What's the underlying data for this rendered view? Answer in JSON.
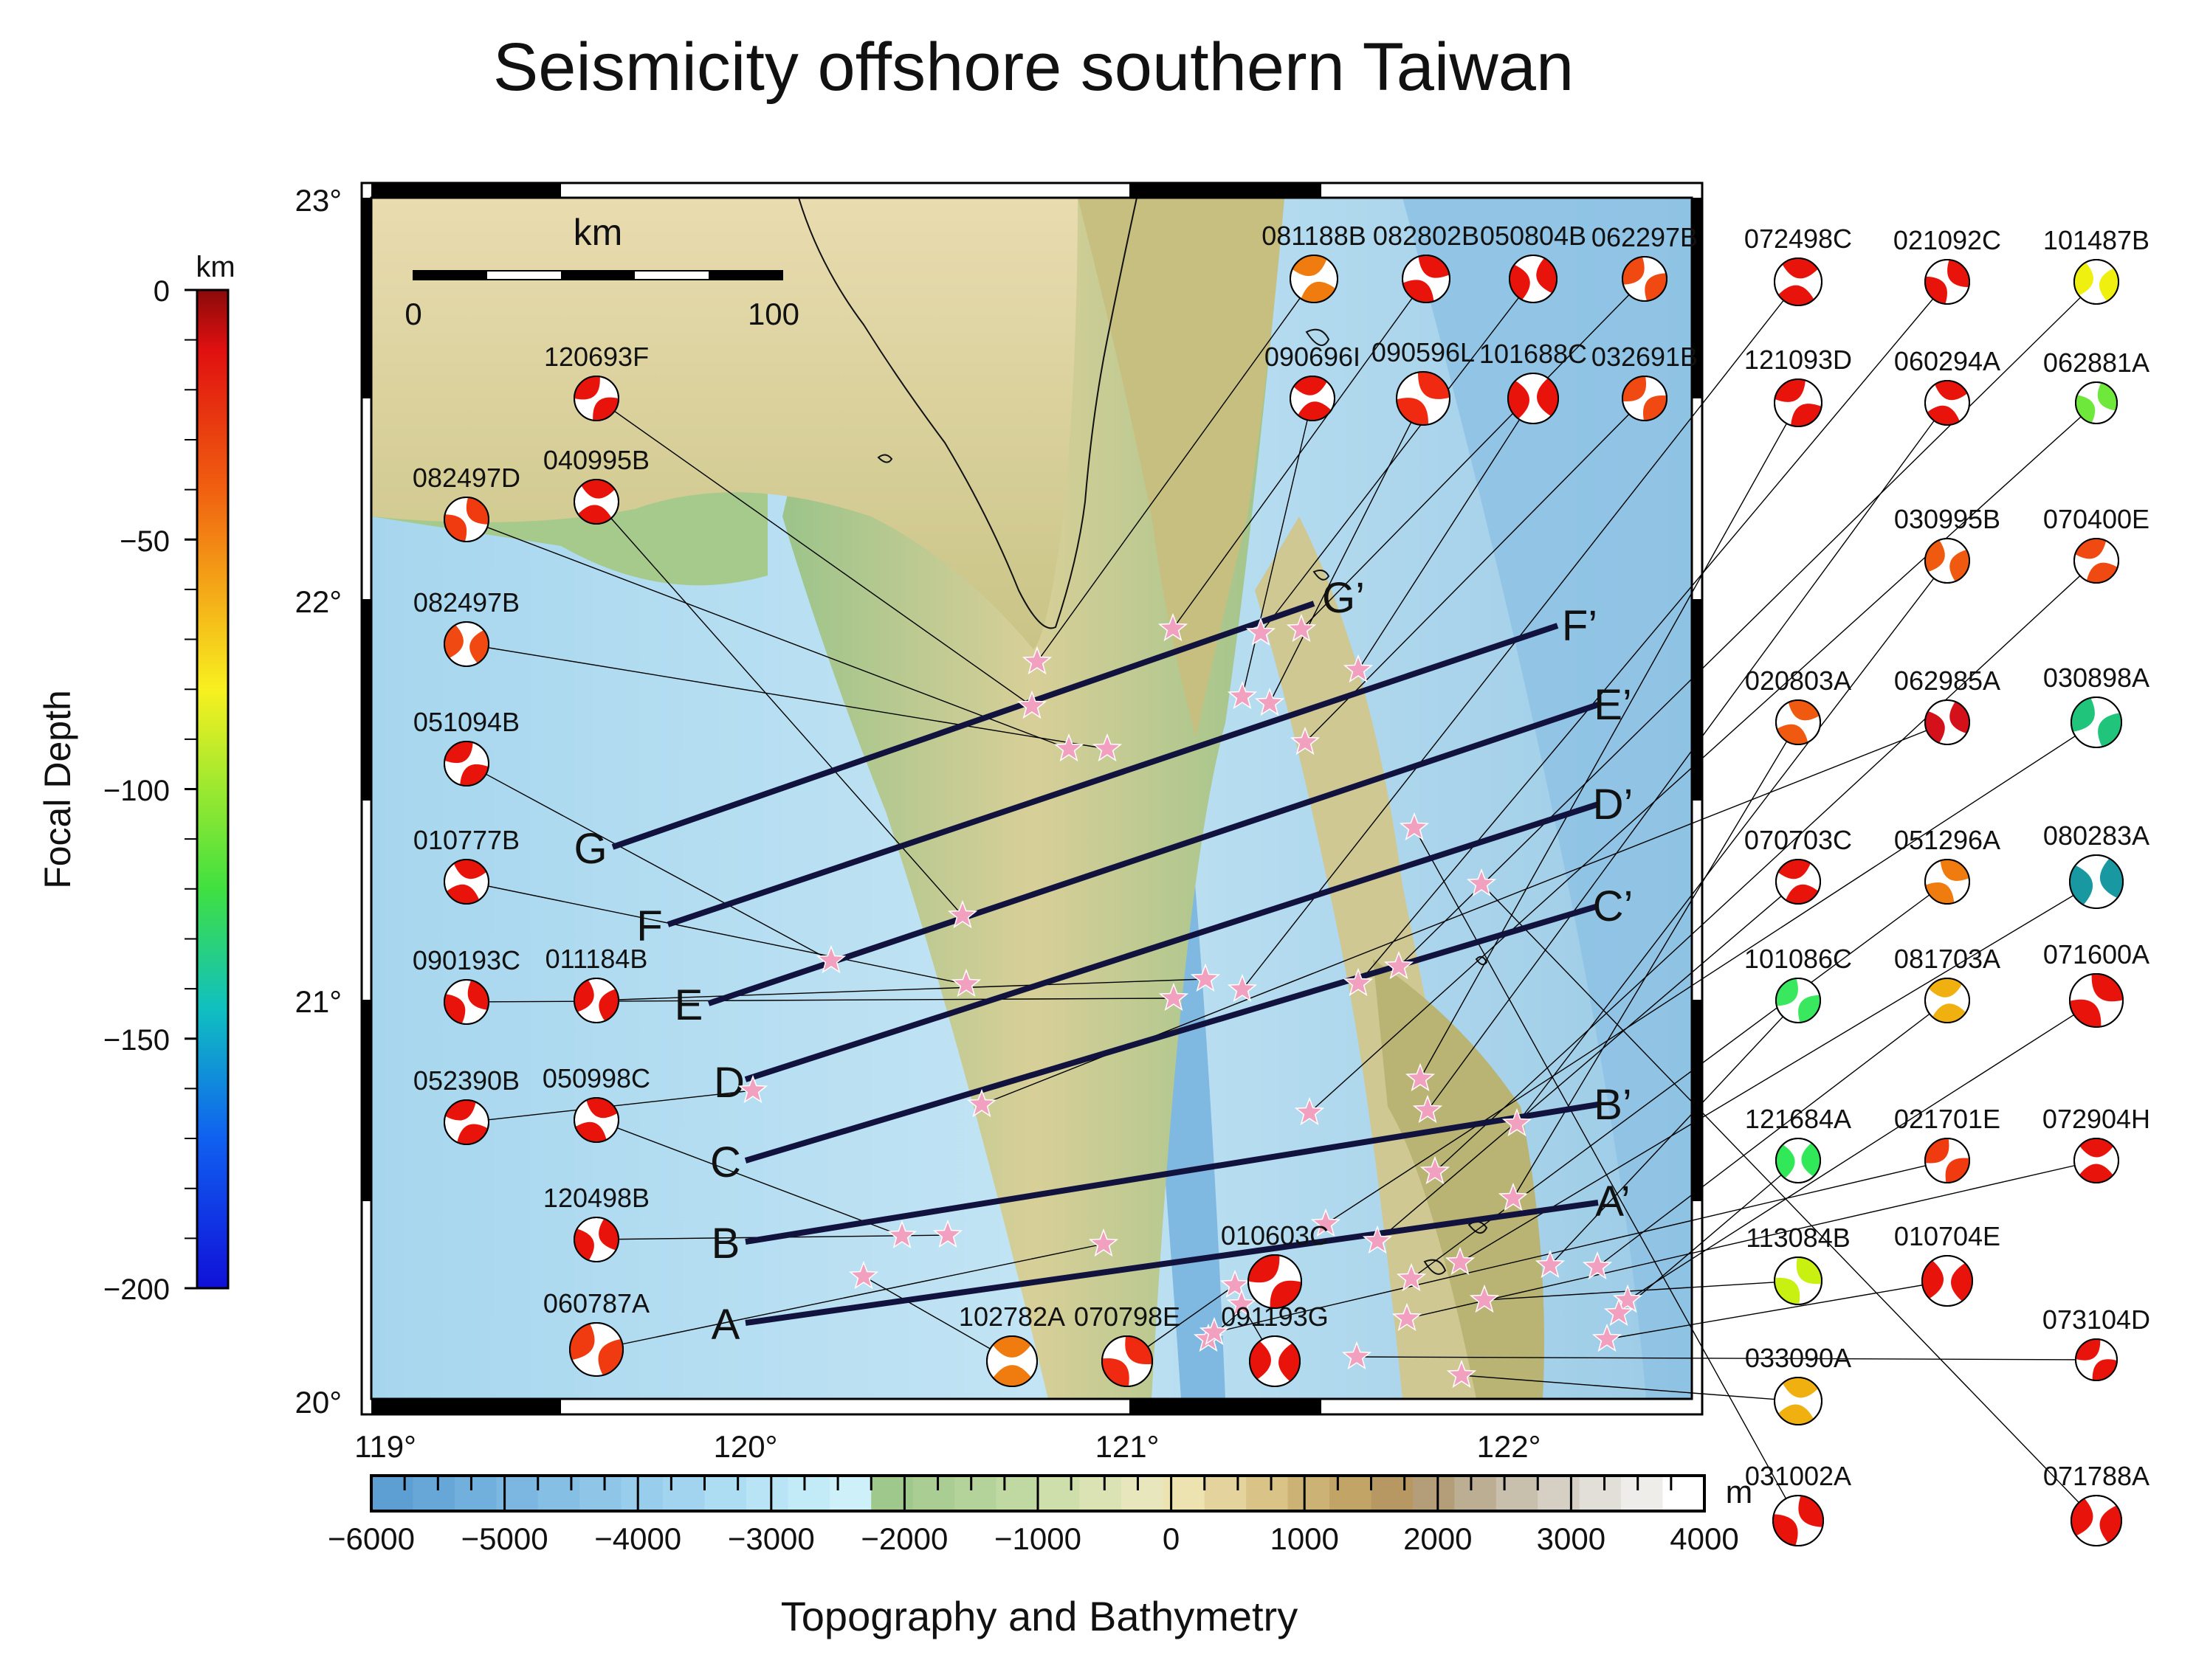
{
  "title": "Seismicity offshore southern Taiwan",
  "depth_scale": {
    "title": "Focal Depth",
    "unit": "km",
    "ticks": [
      "0",
      "−50",
      "−100",
      "−150",
      "−200"
    ]
  },
  "topo_scale": {
    "title": "Topography and Bathymetry",
    "unit": "m",
    "ticks": [
      "−6000",
      "−5000",
      "−4000",
      "−3000",
      "−2000",
      "−1000",
      "0",
      "1000",
      "2000",
      "3000",
      "4000"
    ]
  },
  "map": {
    "lat_labels": [
      "23°",
      "22°",
      "21°",
      "20°"
    ],
    "lon_labels": [
      "119°",
      "120°",
      "121°",
      "122°"
    ],
    "scale_bar": {
      "unit": "km",
      "start": "0",
      "end": "100"
    },
    "profiles": [
      {
        "start": "A",
        "end": "A’"
      },
      {
        "start": "B",
        "end": "B’"
      },
      {
        "start": "C",
        "end": "C’"
      },
      {
        "start": "D",
        "end": "D’"
      },
      {
        "start": "E",
        "end": "E’"
      },
      {
        "start": "F",
        "end": "F’"
      },
      {
        "start": "G",
        "end": "G’"
      }
    ]
  },
  "mechanisms": [
    {
      "id": "120693F",
      "color": "#e8140c"
    },
    {
      "id": "040995B",
      "color": "#e8140c"
    },
    {
      "id": "082497D",
      "color": "#f03a10"
    },
    {
      "id": "082497B",
      "color": "#f04a12"
    },
    {
      "id": "051094B",
      "color": "#e8140c"
    },
    {
      "id": "010777B",
      "color": "#e8140c"
    },
    {
      "id": "090193C",
      "color": "#e8140c"
    },
    {
      "id": "011184B",
      "color": "#e8140c"
    },
    {
      "id": "052390B",
      "color": "#e8140c"
    },
    {
      "id": "050998C",
      "color": "#e8140c"
    },
    {
      "id": "120498B",
      "color": "#e8140c"
    },
    {
      "id": "060787A",
      "color": "#f03a10"
    },
    {
      "id": "081188B",
      "color": "#f07c10"
    },
    {
      "id": "082802B",
      "color": "#e8140c"
    },
    {
      "id": "050804B",
      "color": "#e8140c"
    },
    {
      "id": "062297B",
      "color": "#f04a12"
    },
    {
      "id": "090696I",
      "color": "#e8140c"
    },
    {
      "id": "090596L",
      "color": "#f02a10"
    },
    {
      "id": "101688C",
      "color": "#e8140c"
    },
    {
      "id": "032691B",
      "color": "#f04a12"
    },
    {
      "id": "102782A",
      "color": "#f07c10"
    },
    {
      "id": "070798E",
      "color": "#f02a10"
    },
    {
      "id": "091193G",
      "color": "#e8140c"
    },
    {
      "id": "010603C",
      "color": "#e8140c"
    },
    {
      "id": "072498C",
      "color": "#e8140c"
    },
    {
      "id": "021092C",
      "color": "#e8140c"
    },
    {
      "id": "101487B",
      "color": "#f0f010"
    },
    {
      "id": "121093D",
      "color": "#e8140c"
    },
    {
      "id": "060294A",
      "color": "#e8140c"
    },
    {
      "id": "062881A",
      "color": "#6ee83a"
    },
    {
      "id": "030995B",
      "color": "#f05a10"
    },
    {
      "id": "070400E",
      "color": "#f04a12"
    },
    {
      "id": "020803A",
      "color": "#f05a10"
    },
    {
      "id": "062985A",
      "color": "#d4101a"
    },
    {
      "id": "030898A",
      "color": "#20c47a"
    },
    {
      "id": "070703C",
      "color": "#e8140c"
    },
    {
      "id": "051296A",
      "color": "#f07c10"
    },
    {
      "id": "080283A",
      "color": "#1898a0"
    },
    {
      "id": "101086C",
      "color": "#3ae860"
    },
    {
      "id": "081703A",
      "color": "#f0b010"
    },
    {
      "id": "071600A",
      "color": "#e8140c"
    },
    {
      "id": "121684A",
      "color": "#30e858"
    },
    {
      "id": "021701E",
      "color": "#f03a10"
    },
    {
      "id": "072904H",
      "color": "#e8140c"
    },
    {
      "id": "113084B",
      "color": "#c8f010"
    },
    {
      "id": "010704E",
      "color": "#e8140c"
    },
    {
      "id": "073104D",
      "color": "#e8140c"
    },
    {
      "id": "033090A",
      "color": "#f0b010"
    },
    {
      "id": "031002A",
      "color": "#e8140c"
    },
    {
      "id": "071788A",
      "color": "#e8140c"
    }
  ]
}
